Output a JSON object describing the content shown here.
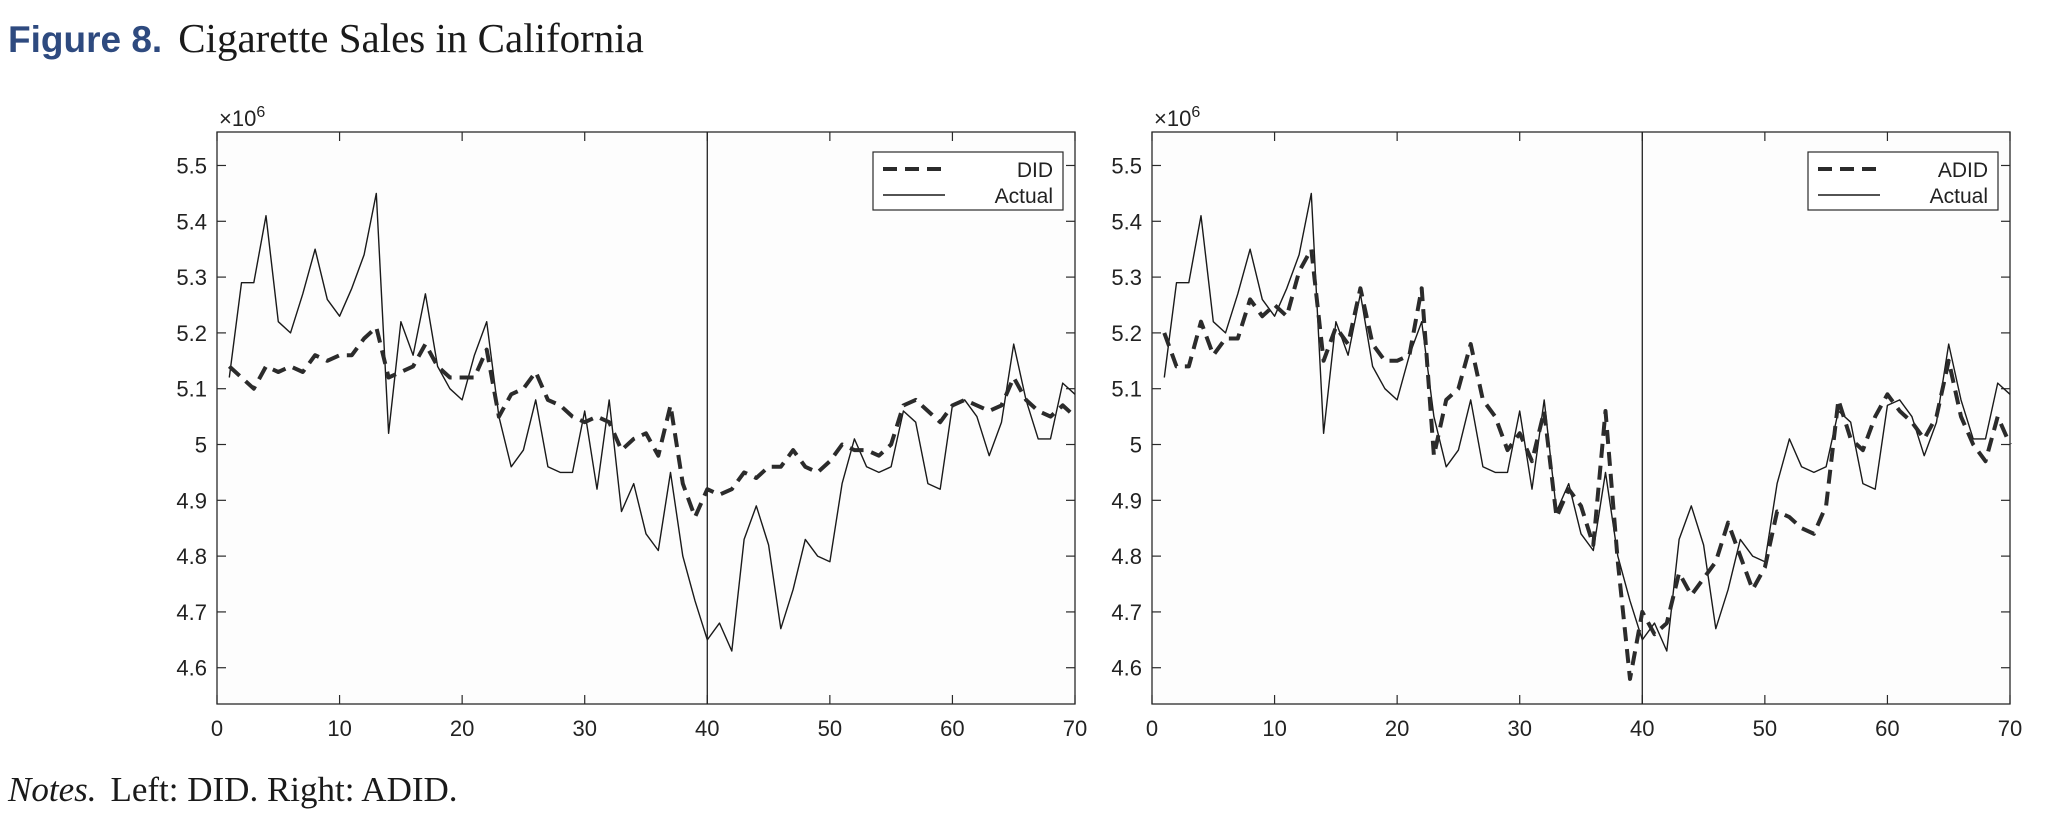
{
  "figure": {
    "label": "Figure 8.",
    "title": "Cigarette Sales in California"
  },
  "notes": {
    "label": "Notes.",
    "text": "Left: DID. Right: ADID."
  },
  "chart_data": [
    {
      "type": "line",
      "title": "",
      "xlabel": "",
      "ylabel": "",
      "y_multiplier_label": "×10^6",
      "xlim": [
        0,
        70
      ],
      "ylim": [
        4.535,
        5.56
      ],
      "xticks": [
        0,
        10,
        20,
        30,
        40,
        50,
        60,
        70
      ],
      "yticks": [
        4.6,
        4.7,
        4.8,
        4.9,
        5,
        5.1,
        5.2,
        5.3,
        5.4,
        5.5
      ],
      "ytick_labels": [
        "4.6",
        "4.7",
        "4.8",
        "4.9",
        "5",
        "5.1",
        "5.2",
        "5.3",
        "5.4",
        "5.5"
      ],
      "vline_x": 40,
      "grid": false,
      "legend_position": "top-right",
      "x": [
        1,
        2,
        3,
        4,
        5,
        6,
        7,
        8,
        9,
        10,
        11,
        12,
        13,
        14,
        15,
        16,
        17,
        18,
        19,
        20,
        21,
        22,
        23,
        24,
        25,
        26,
        27,
        28,
        29,
        30,
        31,
        32,
        33,
        34,
        35,
        36,
        37,
        38,
        39,
        40,
        41,
        42,
        43,
        44,
        45,
        46,
        47,
        48,
        49,
        50,
        51,
        52,
        53,
        54,
        55,
        56,
        57,
        58,
        59,
        60,
        61,
        62,
        63,
        64,
        65,
        66,
        67,
        68,
        69,
        70
      ],
      "series": [
        {
          "name": "DID",
          "style": "dashed",
          "values": [
            5.14,
            5.12,
            5.1,
            5.14,
            5.13,
            5.14,
            5.13,
            5.16,
            5.15,
            5.16,
            5.16,
            5.19,
            5.21,
            5.12,
            5.13,
            5.14,
            5.18,
            5.14,
            5.12,
            5.12,
            5.12,
            5.17,
            5.05,
            5.09,
            5.1,
            5.13,
            5.08,
            5.07,
            5.05,
            5.04,
            5.05,
            5.04,
            4.99,
            5.01,
            5.02,
            4.98,
            5.07,
            4.93,
            4.87,
            4.92,
            4.91,
            4.92,
            4.95,
            4.94,
            4.96,
            4.96,
            4.99,
            4.96,
            4.95,
            4.97,
            5.0,
            4.99,
            4.99,
            4.98,
            5.0,
            5.07,
            5.08,
            5.06,
            5.04,
            5.07,
            5.08,
            5.07,
            5.06,
            5.07,
            5.12,
            5.08,
            5.06,
            5.05,
            5.07,
            5.05
          ]
        },
        {
          "name": "Actual",
          "style": "solid",
          "values": [
            5.12,
            5.29,
            5.29,
            5.41,
            5.22,
            5.2,
            5.27,
            5.35,
            5.26,
            5.23,
            5.28,
            5.34,
            5.45,
            5.02,
            5.22,
            5.16,
            5.27,
            5.14,
            5.1,
            5.08,
            5.16,
            5.22,
            5.05,
            4.96,
            4.99,
            5.08,
            4.96,
            4.95,
            4.95,
            5.06,
            4.92,
            5.08,
            4.88,
            4.93,
            4.84,
            4.81,
            4.95,
            4.8,
            4.72,
            4.65,
            4.68,
            4.63,
            4.83,
            4.89,
            4.82,
            4.67,
            4.74,
            4.83,
            4.8,
            4.79,
            4.93,
            5.01,
            4.96,
            4.95,
            4.96,
            5.06,
            5.04,
            4.93,
            4.92,
            5.07,
            5.08,
            5.05,
            4.98,
            5.04,
            5.18,
            5.08,
            5.01,
            5.01,
            5.11,
            5.09
          ]
        }
      ]
    },
    {
      "type": "line",
      "title": "",
      "xlabel": "",
      "ylabel": "",
      "y_multiplier_label": "×10^6",
      "xlim": [
        0,
        70
      ],
      "ylim": [
        4.535,
        5.56
      ],
      "xticks": [
        0,
        10,
        20,
        30,
        40,
        50,
        60,
        70
      ],
      "yticks": [
        4.6,
        4.7,
        4.8,
        4.9,
        5,
        5.1,
        5.2,
        5.3,
        5.4,
        5.5
      ],
      "ytick_labels": [
        "4.6",
        "4.7",
        "4.8",
        "4.9",
        "5",
        "5.1",
        "5.2",
        "5.3",
        "5.4",
        "5.5"
      ],
      "vline_x": 40,
      "grid": false,
      "legend_position": "top-right",
      "x": [
        1,
        2,
        3,
        4,
        5,
        6,
        7,
        8,
        9,
        10,
        11,
        12,
        13,
        14,
        15,
        16,
        17,
        18,
        19,
        20,
        21,
        22,
        23,
        24,
        25,
        26,
        27,
        28,
        29,
        30,
        31,
        32,
        33,
        34,
        35,
        36,
        37,
        38,
        39,
        40,
        41,
        42,
        43,
        44,
        45,
        46,
        47,
        48,
        49,
        50,
        51,
        52,
        53,
        54,
        55,
        56,
        57,
        58,
        59,
        60,
        61,
        62,
        63,
        64,
        65,
        66,
        67,
        68,
        69,
        70
      ],
      "series": [
        {
          "name": "ADID",
          "style": "dashed",
          "values": [
            5.2,
            5.14,
            5.14,
            5.22,
            5.16,
            5.19,
            5.19,
            5.26,
            5.23,
            5.25,
            5.23,
            5.31,
            5.35,
            5.15,
            5.21,
            5.18,
            5.28,
            5.18,
            5.15,
            5.15,
            5.16,
            5.28,
            4.98,
            5.08,
            5.1,
            5.18,
            5.08,
            5.05,
            4.99,
            5.02,
            4.97,
            5.06,
            4.87,
            4.92,
            4.89,
            4.82,
            5.06,
            4.79,
            4.58,
            4.7,
            4.66,
            4.68,
            4.77,
            4.73,
            4.76,
            4.79,
            4.86,
            4.8,
            4.74,
            4.78,
            4.88,
            4.87,
            4.85,
            4.84,
            4.89,
            5.08,
            5.01,
            4.99,
            5.05,
            5.09,
            5.06,
            5.04,
            5.01,
            5.05,
            5.15,
            5.05,
            5.0,
            4.97,
            5.05,
            5.0
          ]
        },
        {
          "name": "Actual",
          "style": "solid",
          "values": [
            5.12,
            5.29,
            5.29,
            5.41,
            5.22,
            5.2,
            5.27,
            5.35,
            5.26,
            5.23,
            5.28,
            5.34,
            5.45,
            5.02,
            5.22,
            5.16,
            5.27,
            5.14,
            5.1,
            5.08,
            5.16,
            5.22,
            5.05,
            4.96,
            4.99,
            5.08,
            4.96,
            4.95,
            4.95,
            5.06,
            4.92,
            5.08,
            4.88,
            4.93,
            4.84,
            4.81,
            4.95,
            4.8,
            4.72,
            4.65,
            4.68,
            4.63,
            4.83,
            4.89,
            4.82,
            4.67,
            4.74,
            4.83,
            4.8,
            4.79,
            4.93,
            5.01,
            4.96,
            4.95,
            4.96,
            5.06,
            5.04,
            4.93,
            4.92,
            5.07,
            5.08,
            5.05,
            4.98,
            5.04,
            5.18,
            5.08,
            5.01,
            5.01,
            5.11,
            5.09
          ]
        }
      ]
    }
  ]
}
